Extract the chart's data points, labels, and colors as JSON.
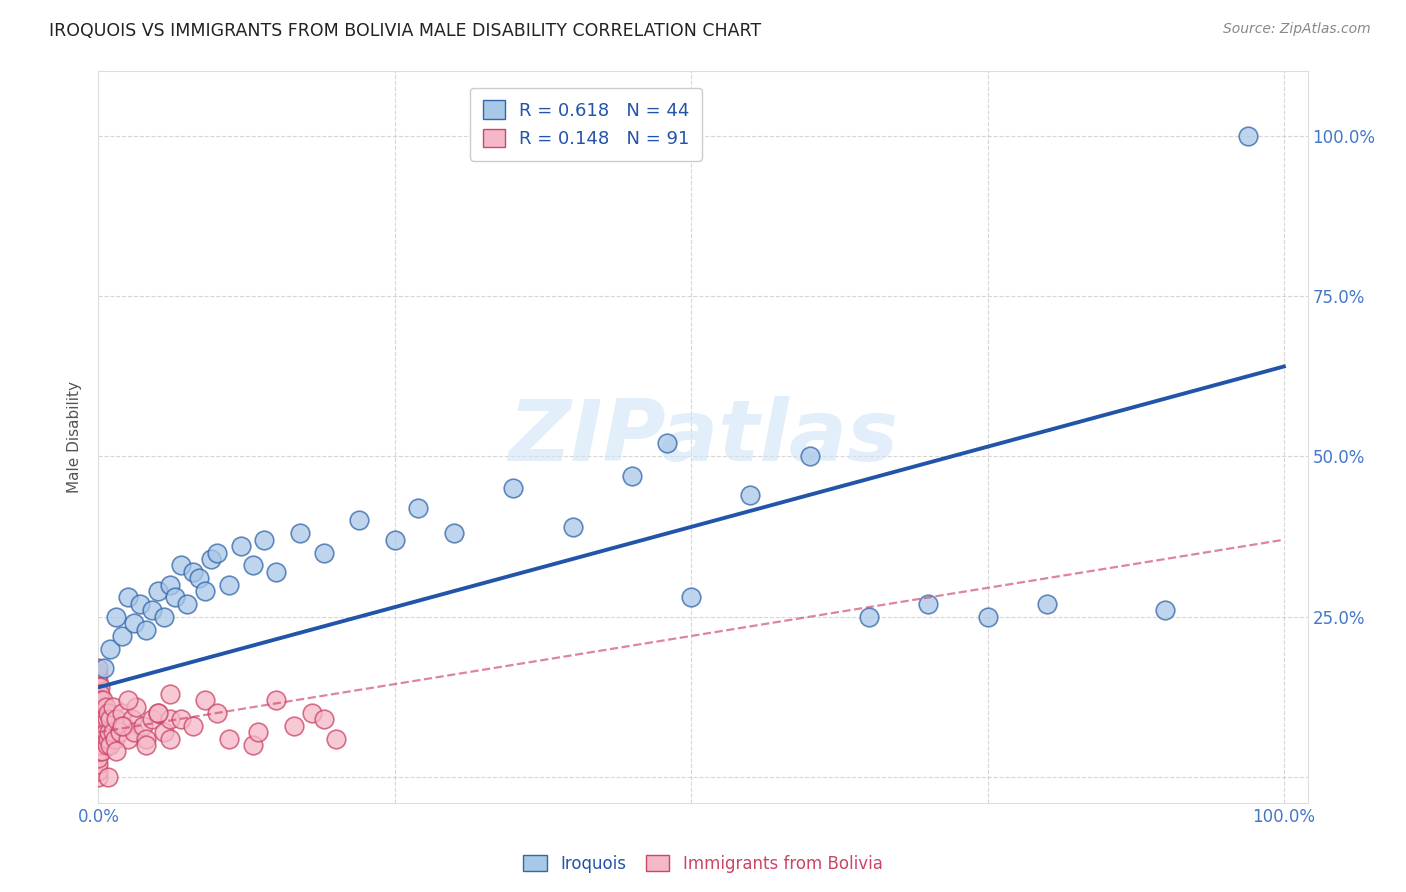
{
  "title": "IROQUOIS VS IMMIGRANTS FROM BOLIVIA MALE DISABILITY CORRELATION CHART",
  "source": "Source: ZipAtlas.com",
  "ylabel": "Male Disability",
  "iroquois_color": "#a8c8e8",
  "iroquois_edge_color": "#3366aa",
  "iroquois_line_color": "#2255aa",
  "bolivia_color": "#f5b8c8",
  "bolivia_edge_color": "#cc4466",
  "bolivia_line_color": "#cc4466",
  "background_color": "#ffffff",
  "grid_color": "#cccccc",
  "watermark_color": "#ddeeff",
  "text_color": "#333333",
  "tick_color": "#4477cc",
  "iroquois_x": [
    0.005,
    0.01,
    0.015,
    0.02,
    0.025,
    0.03,
    0.035,
    0.04,
    0.045,
    0.05,
    0.055,
    0.06,
    0.065,
    0.07,
    0.075,
    0.08,
    0.085,
    0.09,
    0.095,
    0.1,
    0.11,
    0.12,
    0.13,
    0.14,
    0.15,
    0.17,
    0.19,
    0.22,
    0.25,
    0.27,
    0.3,
    0.35,
    0.4,
    0.45,
    0.48,
    0.5,
    0.55,
    0.6,
    0.65,
    0.7,
    0.75,
    0.8,
    0.9,
    0.97
  ],
  "iroquois_y": [
    0.17,
    0.2,
    0.25,
    0.22,
    0.28,
    0.24,
    0.27,
    0.23,
    0.26,
    0.29,
    0.25,
    0.3,
    0.28,
    0.33,
    0.27,
    0.32,
    0.31,
    0.29,
    0.34,
    0.35,
    0.3,
    0.36,
    0.33,
    0.37,
    0.32,
    0.38,
    0.35,
    0.4,
    0.37,
    0.42,
    0.38,
    0.45,
    0.39,
    0.47,
    0.52,
    0.28,
    0.44,
    0.5,
    0.25,
    0.27,
    0.25,
    0.27,
    0.26,
    1.0
  ],
  "bolivia_x_cluster": [
    0.0,
    0.0,
    0.0,
    0.0,
    0.0,
    0.0,
    0.0,
    0.0,
    0.0,
    0.0,
    0.0,
    0.0,
    0.0,
    0.0,
    0.0,
    0.0,
    0.0,
    0.0,
    0.0,
    0.0,
    0.0,
    0.0,
    0.0,
    0.0,
    0.0,
    0.001,
    0.001,
    0.001,
    0.001,
    0.001,
    0.001,
    0.001,
    0.001,
    0.001,
    0.002,
    0.002,
    0.002,
    0.002,
    0.003,
    0.003,
    0.003,
    0.004,
    0.004,
    0.005,
    0.005,
    0.006,
    0.006,
    0.007,
    0.007,
    0.008,
    0.008,
    0.009,
    0.01,
    0.01,
    0.012,
    0.012,
    0.014,
    0.015,
    0.018,
    0.02,
    0.022,
    0.025,
    0.028,
    0.03,
    0.032,
    0.038,
    0.04,
    0.045,
    0.05,
    0.055,
    0.06
  ],
  "bolivia_y_cluster": [
    0.0,
    0.01,
    0.02,
    0.04,
    0.05,
    0.06,
    0.07,
    0.08,
    0.09,
    0.1,
    0.11,
    0.12,
    0.13,
    0.14,
    0.15,
    0.16,
    0.17,
    0.04,
    0.08,
    0.12,
    0.03,
    0.07,
    0.11,
    0.05,
    0.09,
    0.05,
    0.08,
    0.11,
    0.14,
    0.07,
    0.1,
    0.04,
    0.06,
    0.13,
    0.08,
    0.12,
    0.05,
    0.09,
    0.07,
    0.1,
    0.04,
    0.08,
    0.12,
    0.06,
    0.09,
    0.07,
    0.11,
    0.05,
    0.09,
    0.06,
    0.1,
    0.07,
    0.05,
    0.09,
    0.07,
    0.11,
    0.06,
    0.09,
    0.07,
    0.1,
    0.08,
    0.06,
    0.09,
    0.07,
    0.11,
    0.08,
    0.06,
    0.09,
    0.1,
    0.07,
    0.09
  ],
  "bolivia_x_outliers": [
    0.008,
    0.015,
    0.02,
    0.025,
    0.04,
    0.05,
    0.06,
    0.06,
    0.07,
    0.08,
    0.09,
    0.1,
    0.11,
    0.13,
    0.135,
    0.15,
    0.165,
    0.18,
    0.19,
    0.2
  ],
  "bolivia_y_outliers": [
    0.0,
    0.04,
    0.08,
    0.12,
    0.05,
    0.1,
    0.13,
    0.06,
    0.09,
    0.08,
    0.12,
    0.1,
    0.06,
    0.05,
    0.07,
    0.12,
    0.08,
    0.1,
    0.09,
    0.06
  ],
  "iq_line_x0": 0.0,
  "iq_line_y0": 0.14,
  "iq_line_x1": 1.0,
  "iq_line_y1": 0.64,
  "bv_line_x0": 0.0,
  "bv_line_y0": 0.07,
  "bv_line_x1": 1.0,
  "bv_line_y1": 0.37,
  "xlim": [
    0.0,
    1.02
  ],
  "ylim": [
    -0.04,
    1.1
  ]
}
